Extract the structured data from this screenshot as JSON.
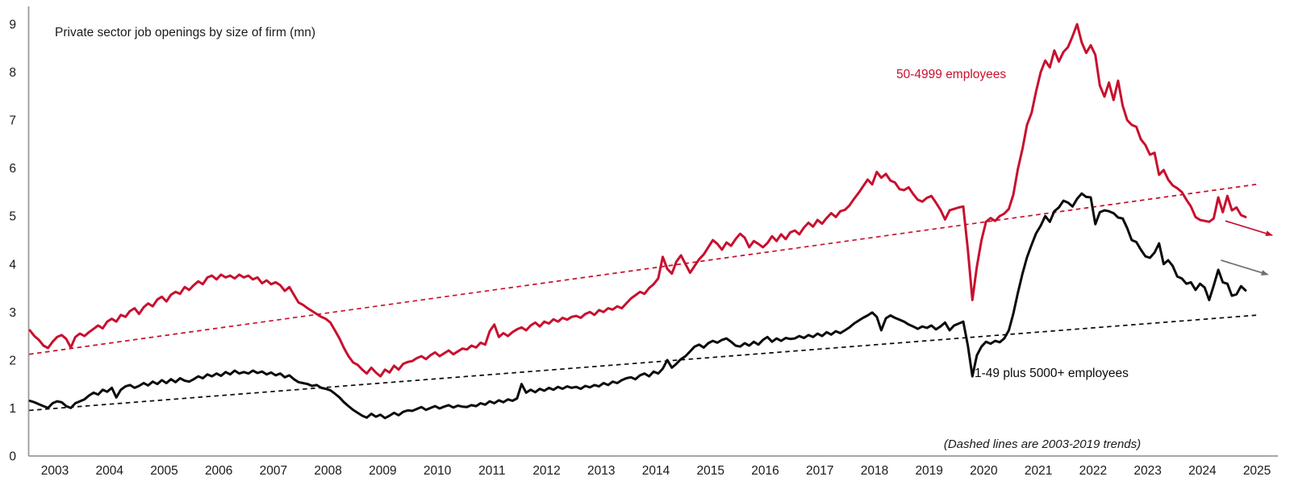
{
  "title": "Private sector job openings by size of firm (mn)",
  "colors": {
    "red_series": "#c8102e",
    "black_series": "#0a0a0a",
    "axis_gray": "#9a9a9a",
    "arrow_gray": "#6e6e6e"
  },
  "chart_data": {
    "type": "line",
    "title": "Private sector job openings by size of firm (mn)",
    "xlabel": "",
    "ylabel": "",
    "note": "(Dashed lines are 2003-2019 trends)",
    "grid": false,
    "legend_position": "inline-labels",
    "ylim": [
      0,
      9
    ],
    "xlim": [
      2002.95,
      2025.6
    ],
    "y_ticks": [
      0,
      1,
      2,
      3,
      4,
      5,
      6,
      7,
      8,
      9
    ],
    "x_ticks": [
      2003,
      2004,
      2005,
      2006,
      2007,
      2008,
      2009,
      2010,
      2011,
      2012,
      2013,
      2014,
      2015,
      2016,
      2017,
      2018,
      2019,
      2020,
      2021,
      2022,
      2023,
      2024,
      2025
    ],
    "x_start": 2003.0,
    "x_step_months": 1,
    "series": [
      {
        "name": "50-4999 employees",
        "style": "solid",
        "color_key": "red_series",
        "values": [
          2.62,
          2.5,
          2.42,
          2.3,
          2.25,
          2.38,
          2.48,
          2.52,
          2.44,
          2.26,
          2.48,
          2.55,
          2.5,
          2.58,
          2.65,
          2.72,
          2.66,
          2.8,
          2.86,
          2.8,
          2.94,
          2.9,
          3.02,
          3.08,
          2.96,
          3.1,
          3.18,
          3.12,
          3.26,
          3.32,
          3.22,
          3.36,
          3.42,
          3.38,
          3.52,
          3.46,
          3.56,
          3.64,
          3.58,
          3.72,
          3.76,
          3.68,
          3.78,
          3.72,
          3.76,
          3.7,
          3.78,
          3.72,
          3.76,
          3.68,
          3.72,
          3.6,
          3.66,
          3.58,
          3.62,
          3.56,
          3.44,
          3.52,
          3.36,
          3.2,
          3.15,
          3.08,
          3.02,
          2.96,
          2.9,
          2.86,
          2.78,
          2.62,
          2.45,
          2.25,
          2.08,
          1.95,
          1.9,
          1.8,
          1.72,
          1.84,
          1.74,
          1.66,
          1.8,
          1.74,
          1.88,
          1.8,
          1.92,
          1.96,
          1.98,
          2.04,
          2.08,
          2.02,
          2.1,
          2.16,
          2.08,
          2.14,
          2.2,
          2.12,
          2.18,
          2.24,
          2.22,
          2.3,
          2.26,
          2.36,
          2.32,
          2.6,
          2.74,
          2.48,
          2.56,
          2.5,
          2.58,
          2.64,
          2.68,
          2.62,
          2.72,
          2.78,
          2.7,
          2.8,
          2.76,
          2.85,
          2.8,
          2.88,
          2.84,
          2.9,
          2.92,
          2.88,
          2.96,
          3.0,
          2.94,
          3.04,
          3.0,
          3.08,
          3.05,
          3.12,
          3.08,
          3.18,
          3.28,
          3.35,
          3.42,
          3.38,
          3.5,
          3.58,
          3.7,
          4.15,
          3.9,
          3.8,
          4.05,
          4.18,
          4.0,
          3.82,
          3.96,
          4.1,
          4.2,
          4.35,
          4.5,
          4.42,
          4.3,
          4.45,
          4.38,
          4.52,
          4.63,
          4.55,
          4.35,
          4.48,
          4.42,
          4.35,
          4.44,
          4.58,
          4.48,
          4.62,
          4.52,
          4.66,
          4.7,
          4.62,
          4.76,
          4.86,
          4.78,
          4.92,
          4.84,
          4.96,
          5.06,
          4.98,
          5.1,
          5.13,
          5.22,
          5.36,
          5.48,
          5.62,
          5.76,
          5.66,
          5.92,
          5.8,
          5.88,
          5.74,
          5.7,
          5.56,
          5.54,
          5.6,
          5.46,
          5.34,
          5.3,
          5.38,
          5.42,
          5.28,
          5.13,
          4.93,
          5.12,
          5.15,
          5.18,
          5.2,
          4.3,
          3.25,
          3.95,
          4.5,
          4.88,
          4.96,
          4.9,
          5.0,
          5.05,
          5.15,
          5.45,
          5.98,
          6.4,
          6.9,
          7.15,
          7.6,
          8.0,
          8.24,
          8.1,
          8.45,
          8.22,
          8.42,
          8.52,
          8.75,
          9.0,
          8.62,
          8.4,
          8.56,
          8.36,
          7.72,
          7.49,
          7.78,
          7.42,
          7.82,
          7.3,
          7.0,
          6.9,
          6.86,
          6.6,
          6.48,
          6.28,
          6.32,
          5.86,
          5.96,
          5.76,
          5.64,
          5.58,
          5.5,
          5.34,
          5.2,
          4.98,
          4.92,
          4.9,
          4.88,
          4.95,
          5.39,
          5.08,
          5.42,
          5.12,
          5.18,
          5.02,
          4.98
        ]
      },
      {
        "name": "1-49 plus 5000+ employees",
        "style": "solid",
        "color_key": "black_series",
        "values": [
          1.15,
          1.12,
          1.08,
          1.04,
          1.0,
          1.1,
          1.14,
          1.12,
          1.04,
          1.0,
          1.1,
          1.14,
          1.18,
          1.26,
          1.32,
          1.28,
          1.38,
          1.34,
          1.42,
          1.22,
          1.38,
          1.45,
          1.48,
          1.42,
          1.46,
          1.52,
          1.47,
          1.55,
          1.5,
          1.58,
          1.52,
          1.6,
          1.54,
          1.62,
          1.57,
          1.55,
          1.6,
          1.66,
          1.62,
          1.7,
          1.66,
          1.72,
          1.67,
          1.75,
          1.7,
          1.78,
          1.72,
          1.75,
          1.72,
          1.78,
          1.73,
          1.76,
          1.7,
          1.74,
          1.68,
          1.72,
          1.64,
          1.68,
          1.6,
          1.54,
          1.52,
          1.5,
          1.46,
          1.48,
          1.42,
          1.4,
          1.37,
          1.3,
          1.22,
          1.12,
          1.04,
          0.96,
          0.9,
          0.84,
          0.8,
          0.88,
          0.82,
          0.86,
          0.79,
          0.84,
          0.9,
          0.85,
          0.92,
          0.95,
          0.94,
          0.98,
          1.02,
          0.96,
          1.0,
          1.04,
          0.99,
          1.03,
          1.06,
          1.01,
          1.05,
          1.03,
          1.02,
          1.06,
          1.04,
          1.1,
          1.07,
          1.14,
          1.1,
          1.16,
          1.12,
          1.18,
          1.15,
          1.2,
          1.5,
          1.32,
          1.38,
          1.33,
          1.4,
          1.36,
          1.42,
          1.38,
          1.44,
          1.4,
          1.45,
          1.42,
          1.44,
          1.4,
          1.46,
          1.43,
          1.48,
          1.45,
          1.52,
          1.48,
          1.55,
          1.52,
          1.58,
          1.62,
          1.64,
          1.6,
          1.68,
          1.72,
          1.66,
          1.76,
          1.72,
          1.82,
          2.0,
          1.84,
          1.92,
          2.02,
          2.08,
          2.18,
          2.28,
          2.32,
          2.26,
          2.35,
          2.4,
          2.36,
          2.42,
          2.45,
          2.38,
          2.3,
          2.28,
          2.35,
          2.3,
          2.38,
          2.32,
          2.42,
          2.48,
          2.38,
          2.45,
          2.4,
          2.46,
          2.44,
          2.45,
          2.5,
          2.46,
          2.52,
          2.48,
          2.55,
          2.5,
          2.58,
          2.53,
          2.6,
          2.56,
          2.62,
          2.68,
          2.76,
          2.82,
          2.88,
          2.93,
          2.99,
          2.9,
          2.62,
          2.87,
          2.93,
          2.88,
          2.84,
          2.8,
          2.74,
          2.7,
          2.65,
          2.7,
          2.67,
          2.72,
          2.64,
          2.7,
          2.78,
          2.62,
          2.72,
          2.76,
          2.8,
          2.3,
          1.66,
          2.1,
          2.28,
          2.38,
          2.34,
          2.4,
          2.37,
          2.45,
          2.62,
          2.97,
          3.4,
          3.8,
          4.14,
          4.4,
          4.64,
          4.8,
          5.0,
          4.88,
          5.1,
          5.18,
          5.32,
          5.28,
          5.2,
          5.36,
          5.47,
          5.4,
          5.39,
          4.83,
          5.08,
          5.12,
          5.1,
          5.06,
          4.97,
          4.95,
          4.75,
          4.5,
          4.46,
          4.3,
          4.16,
          4.13,
          4.24,
          4.43,
          4.0,
          4.08,
          3.96,
          3.74,
          3.7,
          3.59,
          3.62,
          3.46,
          3.59,
          3.51,
          3.25,
          3.55,
          3.88,
          3.62,
          3.59,
          3.34,
          3.37,
          3.54,
          3.45
        ]
      },
      {
        "name": "50-4999 employees 2003-2019 trend",
        "style": "dashed",
        "color_key": "red_series",
        "trend": {
          "x0": 2003.03,
          "y0": 2.12,
          "x1": 2025.55,
          "y1": 5.67
        }
      },
      {
        "name": "1-49 plus 5000+ employees 2003-2019 trend",
        "style": "dashed",
        "color_key": "black_series",
        "trend": {
          "x0": 2003.03,
          "y0": 0.95,
          "x1": 2025.55,
          "y1": 2.94
        }
      }
    ],
    "annotations": {
      "arrows": [
        {
          "name": "red-trend-arrow",
          "color_key": "red_series",
          "x0": 2024.92,
          "y0": 4.9,
          "x1": 2025.78,
          "y1": 4.6
        },
        {
          "name": "gray-trend-arrow",
          "color_key": "arrow_gray",
          "x0": 2024.84,
          "y0": 4.08,
          "x1": 2025.7,
          "y1": 3.78
        }
      ]
    }
  }
}
